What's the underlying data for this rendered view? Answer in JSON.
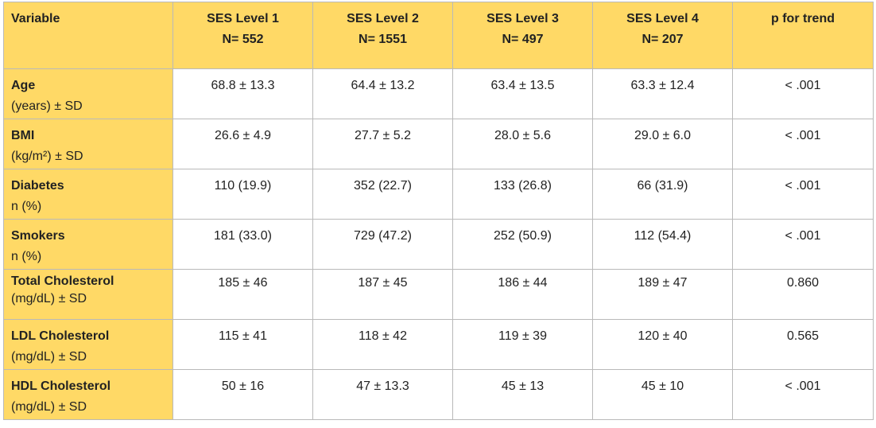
{
  "table": {
    "header": {
      "variable": "Variable",
      "columns": [
        {
          "name": "SES Level 1",
          "n": "N= 552"
        },
        {
          "name": "SES Level 2",
          "n": "N= 1551"
        },
        {
          "name": "SES Level 3",
          "n": "N= 497"
        },
        {
          "name": "SES Level 4",
          "n": "N= 207"
        }
      ],
      "trend": "p for trend"
    },
    "rows": [
      {
        "label": "Age",
        "sub": "(years) ± SD",
        "values": [
          "68.8 ± 13.3",
          "64.4 ± 13.2",
          "63.4 ± 13.5",
          "63.3 ± 12.4"
        ],
        "p": "< .001"
      },
      {
        "label": "BMI",
        "sub": "(kg/m²) ± SD",
        "values": [
          "26.6 ± 4.9",
          "27.7 ± 5.2",
          "28.0 ± 5.6",
          "29.0 ± 6.0"
        ],
        "p": "< .001"
      },
      {
        "label": "Diabetes",
        "sub": "n (%)",
        "values": [
          "110 (19.9)",
          "352 (22.7)",
          "133 (26.8)",
          "66 (31.9)"
        ],
        "p": "< .001"
      },
      {
        "label": "Smokers",
        "sub": "n (%)",
        "values": [
          "181 (33.0)",
          "729 (47.2)",
          "252 (50.9)",
          "112 (54.4)"
        ],
        "p": "< .001"
      },
      {
        "label": "Total Cholesterol",
        "sub": "(mg/dL) ± SD",
        "values": [
          "185 ± 46",
          "187 ± 45",
          "186 ± 44",
          "189 ± 47"
        ],
        "p": "0.860"
      },
      {
        "label": "LDL Cholesterol",
        "sub": "(mg/dL) ± SD",
        "values": [
          "115 ± 41",
          "118 ± 42",
          "119 ± 39",
          "120 ± 40"
        ],
        "p": "0.565"
      },
      {
        "label": "HDL Cholesterol",
        "sub": "(mg/dL) ± SD",
        "values": [
          "50 ± 16",
          "47 ± 13.3",
          "45 ± 13",
          "45 ± 10"
        ],
        "p": "< .001"
      }
    ],
    "colors": {
      "header_bg": "#ffd966",
      "border": "#b9b9b9"
    }
  }
}
